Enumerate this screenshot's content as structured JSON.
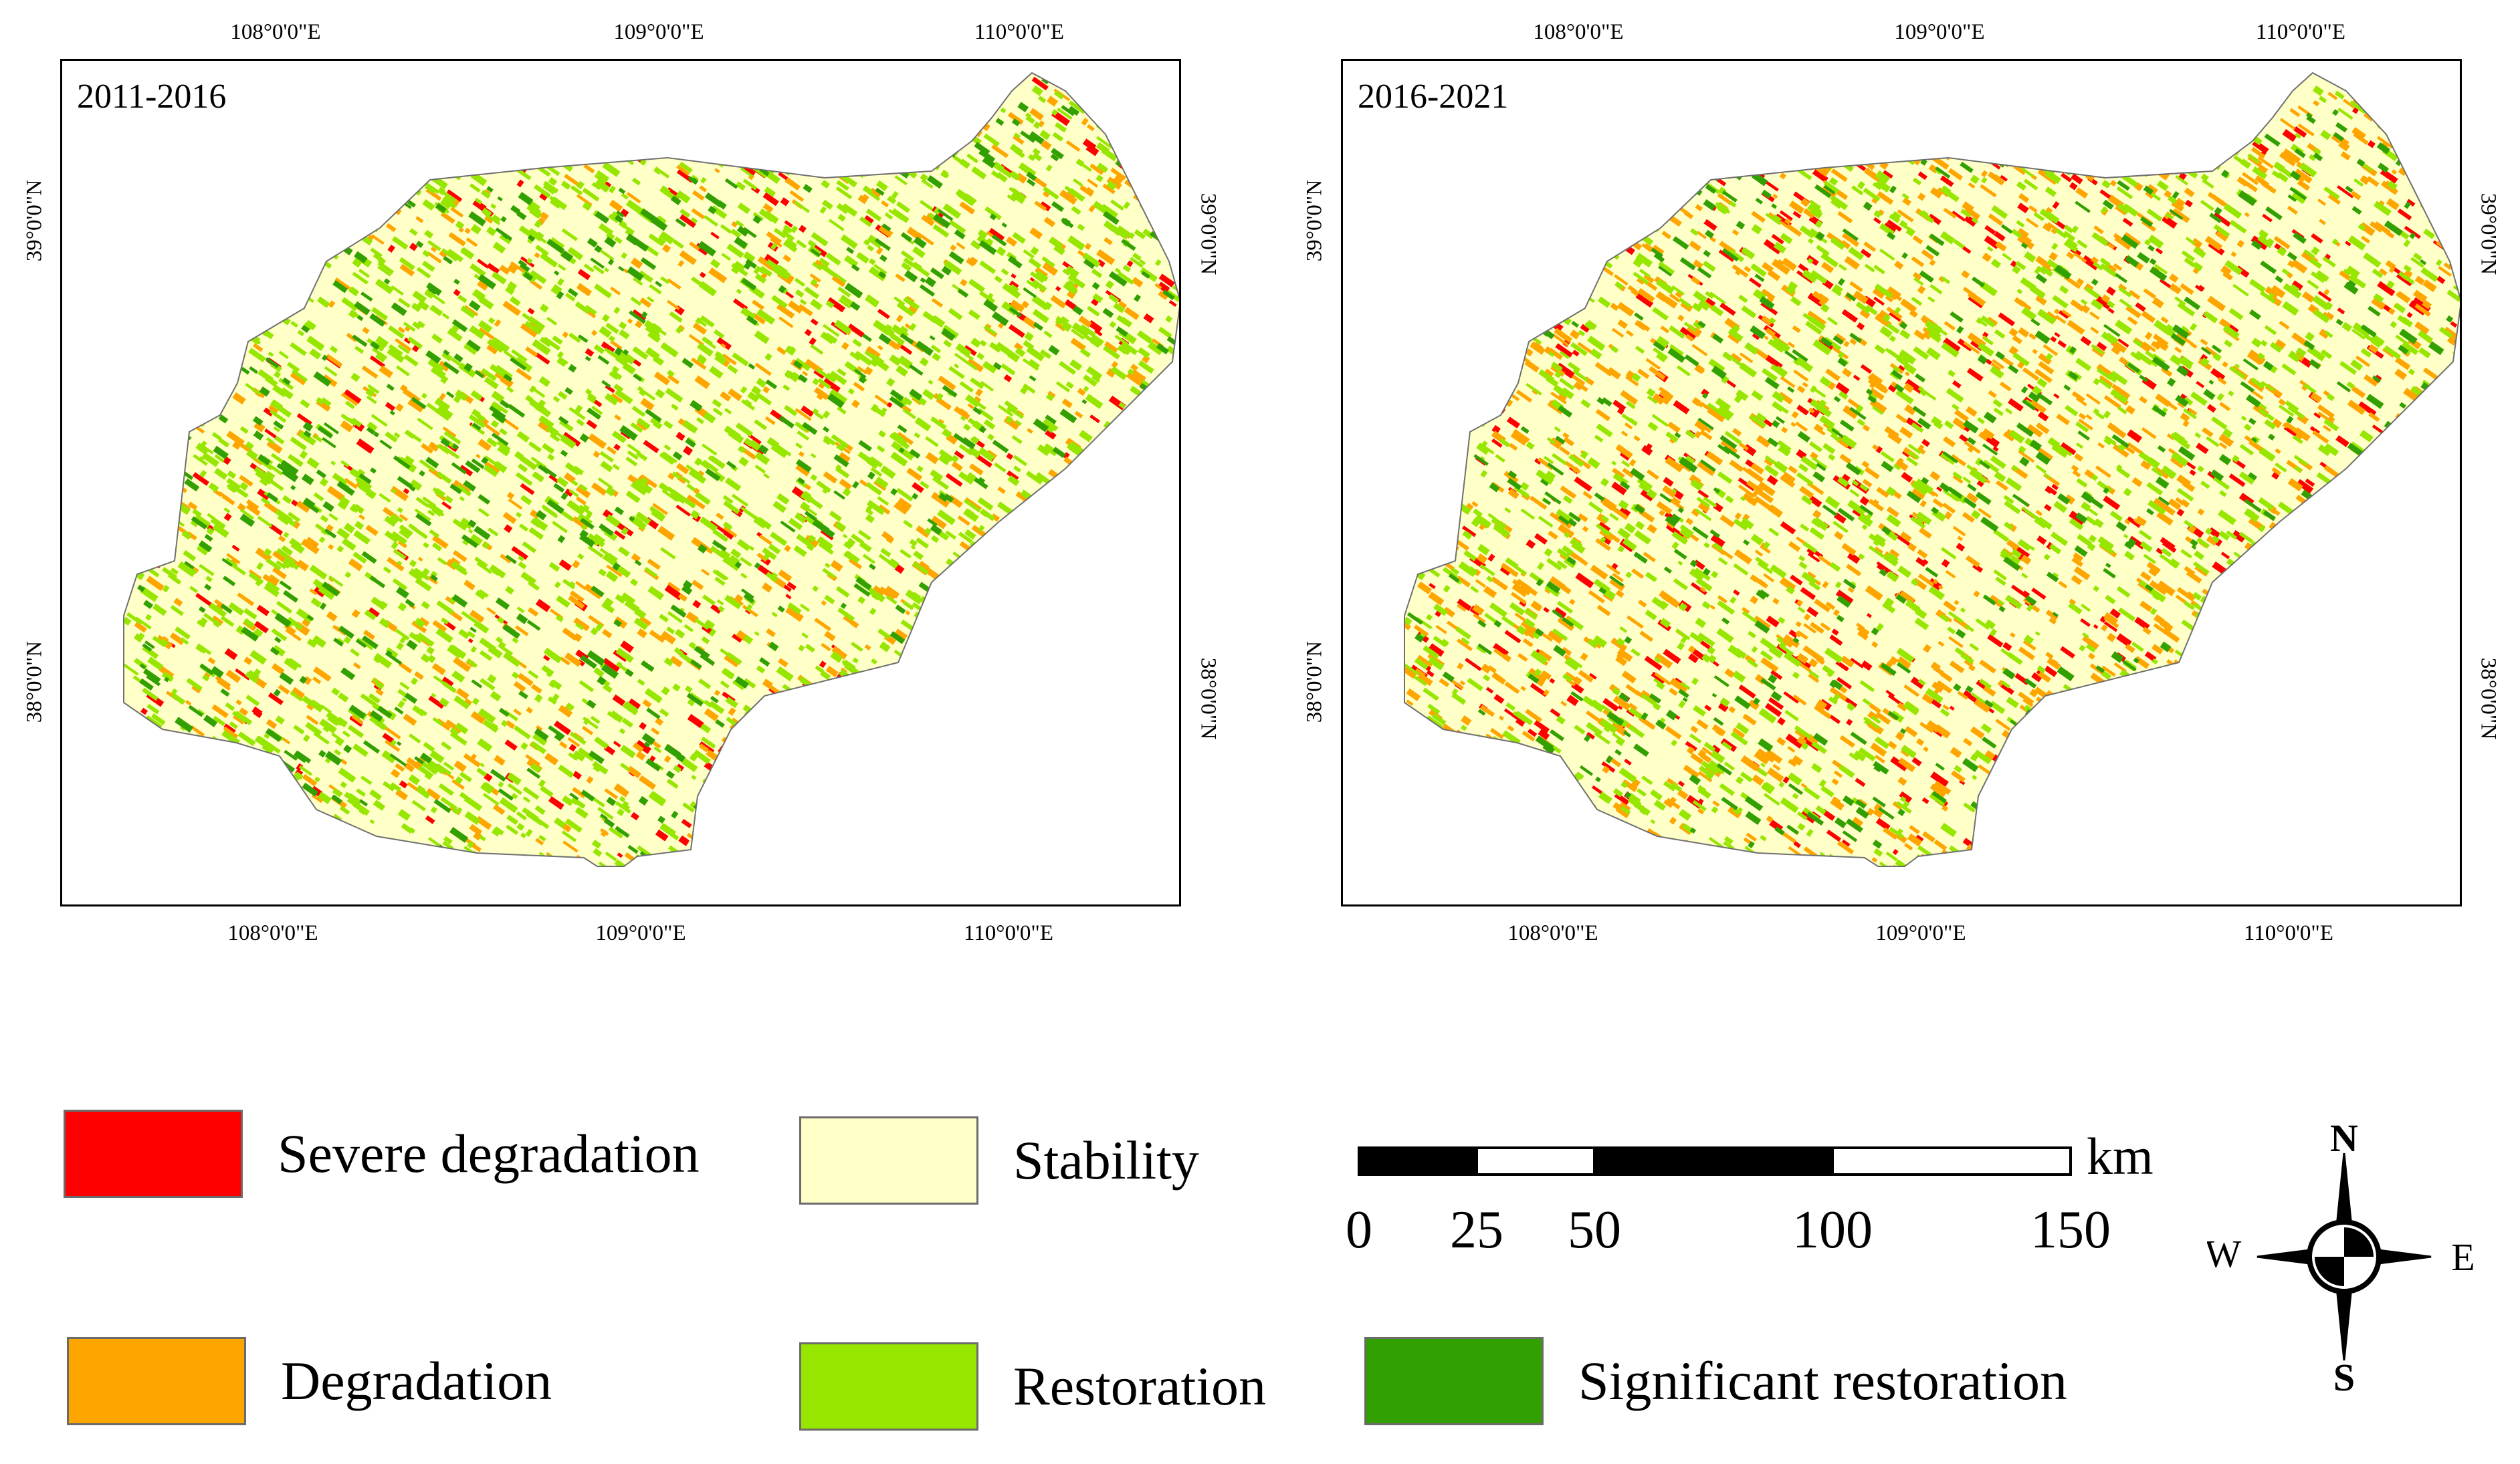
{
  "panels": [
    {
      "title": "2011-2016",
      "top_lon_labels": [
        "108°0'0\"E",
        "109°0'0\"E",
        "110°0'0\"E"
      ],
      "bottom_lon_labels": [
        "108°0'0\"E",
        "109°0'0\"E",
        "110°0'0\"E"
      ],
      "left_lat_labels": [
        "39°0'0\"N",
        "38°0'0\"N"
      ],
      "right_lat_labels": [
        "39°0'0\"N",
        "38°0'0\"N"
      ],
      "class_share": {
        "severe_degradation": 0.04,
        "degradation": 0.1,
        "stability": 0.52,
        "restoration": 0.27,
        "significant_restoration": 0.07
      }
    },
    {
      "title": "2016-2021",
      "top_lon_labels": [
        "108°0'0\"E",
        "109°0'0\"E",
        "110°0'0\"E"
      ],
      "bottom_lon_labels": [
        "108°0'0\"E",
        "109°0'0\"E",
        "110°0'0\"E"
      ],
      "left_lat_labels": [
        "39°0'0\"N",
        "38°0'0\"N"
      ],
      "right_lat_labels": [
        "39°0'0\"N",
        "38°0'0\"N"
      ],
      "class_share": {
        "severe_degradation": 0.07,
        "degradation": 0.18,
        "stability": 0.52,
        "restoration": 0.17,
        "significant_restoration": 0.06
      }
    }
  ],
  "legend": [
    {
      "label": "Severe degradation",
      "color": "#ff0000"
    },
    {
      "label": "Stability",
      "color": "#ffffc8"
    },
    {
      "label": "Degradation",
      "color": "#ffa500"
    },
    {
      "label": "Restoration",
      "color": "#96e600"
    },
    {
      "label": "Significant restoration",
      "color": "#32a000"
    }
  ],
  "scale_bar": {
    "unit": "km",
    "ticks": [
      "0",
      "25",
      "50",
      "100",
      "150"
    ]
  },
  "north_arrow": {
    "n": "N",
    "s": "S",
    "e": "E",
    "w": "W"
  }
}
